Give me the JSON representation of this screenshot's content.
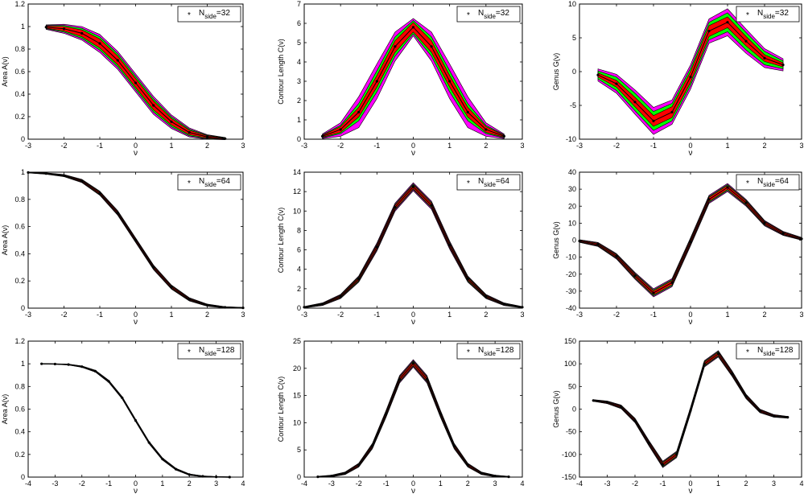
{
  "chart_data": [
    {
      "type": "area",
      "xlabel": "ν",
      "ylabel": "Area A(ν)",
      "xlim": [
        -3,
        3
      ],
      "ylim": [
        0,
        1.2
      ],
      "xticks": [
        -3,
        -2,
        -1,
        0,
        1,
        2,
        3
      ],
      "yticks": [
        0,
        0.2,
        0.4,
        0.6,
        0.8,
        1,
        1.2
      ],
      "legend": {
        "marker": "*",
        "symbol": "N",
        "subscript": "side",
        "value": "=32"
      },
      "x": [
        -2.5,
        -2,
        -1.5,
        -1,
        -0.5,
        0,
        0.5,
        1,
        1.5,
        2,
        2.5
      ],
      "mean": [
        0.995,
        0.98,
        0.94,
        0.85,
        0.7,
        0.5,
        0.3,
        0.155,
        0.06,
        0.02,
        0.005
      ],
      "band1": [
        0.01,
        0.02,
        0.03,
        0.04,
        0.04,
        0.04,
        0.04,
        0.03,
        0.02,
        0.01,
        0.005
      ],
      "band2": [
        0.015,
        0.03,
        0.045,
        0.06,
        0.06,
        0.06,
        0.06,
        0.045,
        0.03,
        0.015,
        0.008
      ],
      "band3": [
        0.02,
        0.04,
        0.06,
        0.08,
        0.08,
        0.08,
        0.08,
        0.06,
        0.04,
        0.02,
        0.01
      ]
    },
    {
      "type": "area",
      "xlabel": "ν",
      "ylabel": "Contour Length C(ν)",
      "xlim": [
        -3,
        3
      ],
      "ylim": [
        0,
        7
      ],
      "xticks": [
        -3,
        -2,
        -1,
        0,
        1,
        2,
        3
      ],
      "yticks": [
        0,
        1,
        2,
        3,
        4,
        5,
        6,
        7
      ],
      "legend": {
        "marker": "*",
        "symbol": "N",
        "subscript": "side",
        "value": "=32"
      },
      "x": [
        -2.5,
        -2,
        -1.5,
        -1,
        -0.5,
        0,
        0.5,
        1,
        1.5,
        2,
        2.5
      ],
      "mean": [
        0.15,
        0.5,
        1.4,
        3.0,
        4.8,
        5.8,
        4.8,
        3.0,
        1.4,
        0.5,
        0.15
      ],
      "band1": [
        0.05,
        0.15,
        0.25,
        0.3,
        0.3,
        0.25,
        0.3,
        0.3,
        0.25,
        0.15,
        0.05
      ],
      "band2": [
        0.08,
        0.22,
        0.45,
        0.55,
        0.5,
        0.35,
        0.5,
        0.55,
        0.45,
        0.22,
        0.08
      ],
      "band3": [
        0.12,
        0.35,
        0.8,
        0.9,
        0.75,
        0.45,
        0.75,
        0.9,
        0.8,
        0.35,
        0.12
      ]
    },
    {
      "type": "area",
      "xlabel": "ν",
      "ylabel": "Genus G(ν)",
      "xlim": [
        -3,
        3
      ],
      "ylim": [
        -10,
        10
      ],
      "xticks": [
        -3,
        -2,
        -1,
        0,
        1,
        2,
        3
      ],
      "yticks": [
        -10,
        -5,
        0,
        5,
        10
      ],
      "legend": {
        "marker": "*",
        "symbol": "N",
        "subscript": "side",
        "value": "=32"
      },
      "x": [
        -2.5,
        -2,
        -1.5,
        -1,
        -0.5,
        0,
        0.5,
        1,
        1.5,
        2,
        2.5
      ],
      "mean": [
        -0.5,
        -1.8,
        -4.5,
        -7.3,
        -6.0,
        -0.8,
        6.0,
        7.3,
        4.5,
        2.0,
        1.0
      ],
      "band1": [
        0.3,
        0.5,
        0.7,
        0.8,
        0.8,
        0.8,
        0.8,
        0.8,
        0.7,
        0.5,
        0.3
      ],
      "band2": [
        0.6,
        1.0,
        1.3,
        1.4,
        1.3,
        1.3,
        1.3,
        1.4,
        1.3,
        1.0,
        0.6
      ],
      "band3": [
        0.9,
        1.4,
        1.8,
        2.0,
        1.8,
        1.8,
        1.8,
        2.0,
        1.8,
        1.4,
        0.9
      ]
    },
    {
      "type": "area",
      "xlabel": "ν",
      "ylabel": "Area A(ν)",
      "xlim": [
        -3,
        3
      ],
      "ylim": [
        0,
        1
      ],
      "xticks": [
        -3,
        -2,
        -1,
        0,
        1,
        2,
        3
      ],
      "yticks": [
        0,
        0.2,
        0.4,
        0.6,
        0.8,
        1
      ],
      "legend": {
        "marker": "*",
        "symbol": "N",
        "subscript": "side",
        "value": "=64"
      },
      "x": [
        -3,
        -2.5,
        -2,
        -1.5,
        -1,
        -0.5,
        0,
        0.5,
        1,
        1.5,
        2,
        2.5,
        3
      ],
      "mean": [
        0.998,
        0.99,
        0.975,
        0.935,
        0.845,
        0.7,
        0.5,
        0.3,
        0.155,
        0.065,
        0.022,
        0.006,
        0.002
      ],
      "band1": [
        0.002,
        0.003,
        0.004,
        0.006,
        0.008,
        0.009,
        0.009,
        0.009,
        0.008,
        0.006,
        0.004,
        0.003,
        0.002
      ],
      "band2": [
        0.003,
        0.004,
        0.006,
        0.009,
        0.012,
        0.013,
        0.013,
        0.013,
        0.012,
        0.009,
        0.006,
        0.004,
        0.003
      ],
      "band3": [
        0.004,
        0.005,
        0.008,
        0.012,
        0.015,
        0.017,
        0.017,
        0.017,
        0.015,
        0.012,
        0.008,
        0.005,
        0.004
      ]
    },
    {
      "type": "area",
      "xlabel": "ν",
      "ylabel": "Contour Length C(ν)",
      "xlim": [
        -3,
        3
      ],
      "ylim": [
        0,
        14
      ],
      "xticks": [
        -3,
        -2,
        -1,
        0,
        1,
        2,
        3
      ],
      "yticks": [
        0,
        2,
        4,
        6,
        8,
        10,
        12,
        14
      ],
      "legend": {
        "marker": "*",
        "symbol": "N",
        "subscript": "side",
        "value": "=64"
      },
      "x": [
        -3,
        -2.5,
        -2,
        -1.5,
        -1,
        -0.5,
        0,
        0.5,
        1,
        1.5,
        2,
        2.5,
        3
      ],
      "mean": [
        0.1,
        0.4,
        1.2,
        3.0,
        6.3,
        10.4,
        12.5,
        10.6,
        6.5,
        3.0,
        1.2,
        0.4,
        0.1
      ],
      "band1": [
        0.03,
        0.06,
        0.1,
        0.15,
        0.2,
        0.2,
        0.2,
        0.2,
        0.2,
        0.15,
        0.1,
        0.06,
        0.03
      ],
      "band2": [
        0.05,
        0.1,
        0.16,
        0.24,
        0.3,
        0.3,
        0.3,
        0.3,
        0.3,
        0.24,
        0.16,
        0.1,
        0.05
      ],
      "band3": [
        0.07,
        0.14,
        0.22,
        0.32,
        0.42,
        0.42,
        0.42,
        0.42,
        0.42,
        0.32,
        0.22,
        0.14,
        0.07
      ]
    },
    {
      "type": "area",
      "xlabel": "ν",
      "ylabel": "Genus G(ν)",
      "xlim": [
        -3,
        3
      ],
      "ylim": [
        -40,
        40
      ],
      "xticks": [
        -3,
        -2,
        -1,
        0,
        1,
        2,
        3
      ],
      "yticks": [
        -40,
        -30,
        -20,
        -10,
        0,
        10,
        20,
        30,
        40
      ],
      "legend": {
        "marker": "*",
        "symbol": "N",
        "subscript": "side",
        "value": "=64"
      },
      "x": [
        -3,
        -2.5,
        -2,
        -1.5,
        -1,
        -0.5,
        0,
        0.5,
        1,
        1.5,
        2,
        2.5,
        3
      ],
      "mean": [
        -0.5,
        -2.5,
        -9.5,
        -21,
        -31,
        -25,
        -1,
        24,
        31,
        22,
        10,
        4,
        0.8
      ],
      "band1": [
        0.4,
        0.6,
        0.8,
        1.0,
        1.2,
        1.2,
        1.2,
        1.2,
        1.2,
        1.0,
        0.8,
        0.6,
        0.4
      ],
      "band2": [
        0.6,
        0.9,
        1.2,
        1.5,
        1.8,
        1.8,
        1.8,
        1.8,
        1.8,
        1.5,
        1.2,
        0.9,
        0.6
      ],
      "band3": [
        0.8,
        1.2,
        1.6,
        2.0,
        2.4,
        2.4,
        2.4,
        2.4,
        2.4,
        2.0,
        1.6,
        1.2,
        0.8
      ]
    },
    {
      "type": "area",
      "xlabel": "ν",
      "ylabel": "Area A(ν)",
      "xlim": [
        -4,
        4
      ],
      "ylim": [
        0,
        1.2
      ],
      "xticks": [
        -4,
        -3,
        -2,
        -1,
        0,
        1,
        2,
        3,
        4
      ],
      "yticks": [
        0,
        0.2,
        0.4,
        0.6,
        0.8,
        1,
        1.2
      ],
      "legend": {
        "marker": "*",
        "symbol": "N",
        "subscript": "side",
        "value": "=128"
      },
      "x": [
        -3.5,
        -3,
        -2.5,
        -2,
        -1.5,
        -1,
        -0.5,
        0,
        0.5,
        1,
        1.5,
        2,
        2.5,
        3,
        3.5
      ],
      "mean": [
        1.0,
        0.998,
        0.993,
        0.975,
        0.935,
        0.845,
        0.7,
        0.5,
        0.305,
        0.16,
        0.07,
        0.022,
        0.007,
        0.002,
        0.0
      ],
      "band1": [
        0.001,
        0.001,
        0.002,
        0.003,
        0.004,
        0.005,
        0.005,
        0.005,
        0.005,
        0.005,
        0.004,
        0.003,
        0.002,
        0.001,
        0.001
      ],
      "band2": [
        0.002,
        0.002,
        0.003,
        0.005,
        0.006,
        0.007,
        0.008,
        0.008,
        0.008,
        0.007,
        0.006,
        0.005,
        0.003,
        0.002,
        0.002
      ],
      "band3": [
        0.003,
        0.003,
        0.004,
        0.006,
        0.008,
        0.01,
        0.011,
        0.011,
        0.011,
        0.01,
        0.008,
        0.006,
        0.004,
        0.003,
        0.003
      ]
    },
    {
      "type": "area",
      "xlabel": "ν",
      "ylabel": "Contour Length C(ν)",
      "xlim": [
        -4,
        4
      ],
      "ylim": [
        0,
        25
      ],
      "xticks": [
        -4,
        -3,
        -2,
        -1,
        0,
        1,
        2,
        3,
        4
      ],
      "yticks": [
        0,
        5,
        10,
        15,
        20,
        25
      ],
      "legend": {
        "marker": "*",
        "symbol": "N",
        "subscript": "side",
        "value": "=128"
      },
      "x": [
        -3.5,
        -3,
        -2.5,
        -2,
        -1.5,
        -1,
        -0.5,
        0,
        0.5,
        1,
        1.5,
        2,
        2.5,
        3,
        3.5
      ],
      "mean": [
        0.05,
        0.2,
        0.7,
        2.2,
        5.7,
        11.6,
        18.0,
        20.9,
        18.0,
        11.6,
        5.7,
        2.2,
        0.7,
        0.2,
        0.05
      ],
      "band1": [
        0.05,
        0.08,
        0.12,
        0.18,
        0.25,
        0.32,
        0.35,
        0.35,
        0.35,
        0.32,
        0.25,
        0.18,
        0.12,
        0.08,
        0.05
      ],
      "band2": [
        0.08,
        0.12,
        0.18,
        0.27,
        0.38,
        0.48,
        0.52,
        0.52,
        0.52,
        0.48,
        0.38,
        0.27,
        0.18,
        0.12,
        0.08
      ],
      "band3": [
        0.1,
        0.16,
        0.24,
        0.36,
        0.5,
        0.64,
        0.7,
        0.7,
        0.7,
        0.64,
        0.5,
        0.36,
        0.24,
        0.16,
        0.1
      ]
    },
    {
      "type": "area",
      "xlabel": "ν",
      "ylabel": "Genus G(ν)",
      "xlim": [
        -4,
        4
      ],
      "ylim": [
        -150,
        150
      ],
      "xticks": [
        -4,
        -3,
        -2,
        -1,
        0,
        1,
        2,
        3,
        4
      ],
      "yticks": [
        -150,
        -100,
        -50,
        0,
        50,
        100,
        150
      ],
      "legend": {
        "marker": "*",
        "symbol": "N",
        "subscript": "side",
        "value": "=128"
      },
      "x": [
        -3.5,
        -3,
        -2.5,
        -2,
        -1.5,
        -1,
        -0.5,
        0,
        0.5,
        1,
        1.5,
        2,
        2.5,
        3,
        3.5
      ],
      "mean": [
        19,
        15,
        5,
        -25,
        -75,
        -122,
        -100,
        -3,
        100,
        122,
        78,
        28,
        -4,
        -15,
        -18
      ],
      "band1": [
        1.0,
        1.5,
        2.0,
        2.5,
        3.0,
        3.5,
        3.5,
        3.5,
        3.5,
        3.5,
        3.0,
        2.5,
        2.0,
        1.5,
        1.0
      ],
      "band2": [
        1.5,
        2.2,
        3.0,
        3.8,
        4.5,
        5.3,
        5.3,
        5.3,
        5.3,
        5.3,
        4.5,
        3.8,
        3.0,
        2.2,
        1.5
      ],
      "band3": [
        2.0,
        3.0,
        4.0,
        5.0,
        6.0,
        7.0,
        7.0,
        7.0,
        7.0,
        7.0,
        6.0,
        5.0,
        4.0,
        3.0,
        2.0
      ]
    }
  ],
  "colors": {
    "band_outer": "#ff00ff",
    "band_middle": "#00ff00",
    "band_inner": "#ff0000",
    "mean_line": "#000000",
    "axes": "#000000",
    "background": "#ffffff"
  }
}
